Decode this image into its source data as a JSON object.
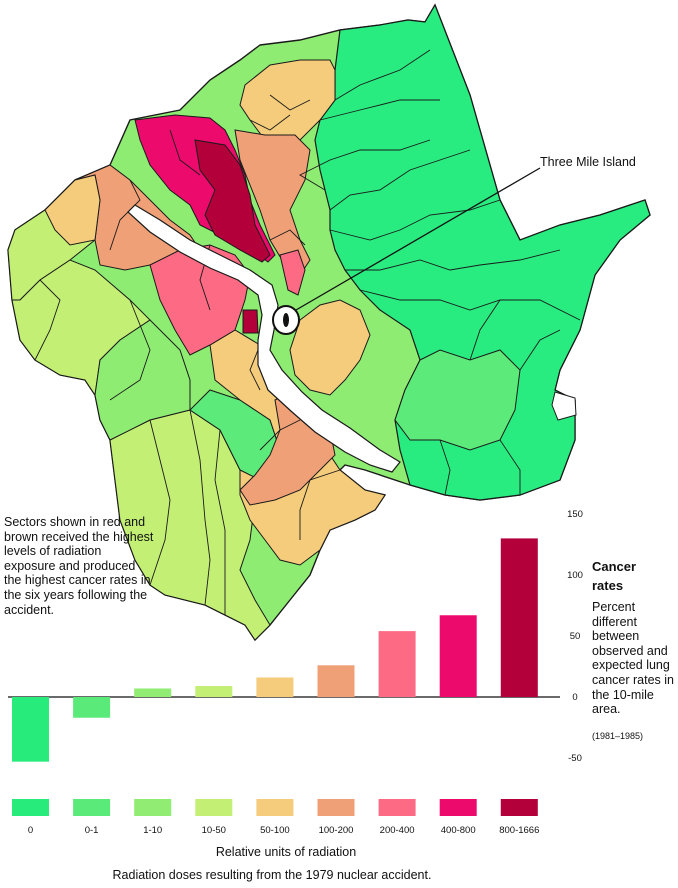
{
  "map": {
    "island_label": "Three Mile Island",
    "note": "Sectors shown in red and brown received the highest levels of radiation exposure and produced the highest cancer rates in the six years following the accident."
  },
  "legend": {
    "title_line1": "Cancer",
    "title_line2": "rates",
    "description": "Percent different between observed and expected lung cancer rates in the 10-mile area.",
    "period": "(1981–1985)"
  },
  "colors": {
    "0": "#27ec7c",
    "0-1": "#5aea7a",
    "1-10": "#90ec72",
    "10-50": "#c3ef75",
    "50-100": "#f4cc7b",
    "100-200": "#f0a077",
    "200-400": "#fd6a83",
    "400-800": "#ec0a6c",
    "800-1666": "#b3003a"
  },
  "chart_data": {
    "type": "bar",
    "categories": [
      "0",
      "0-1",
      "1-10",
      "10-50",
      "50-100",
      "100-200",
      "200-400",
      "400-800",
      "800-1666"
    ],
    "values": [
      -53,
      -17,
      7,
      9,
      16,
      26,
      54,
      67,
      130
    ],
    "ylim": [
      -60,
      150
    ],
    "yticks": [
      150,
      100,
      50,
      0,
      -50
    ],
    "ytick_labels": [
      "150",
      "100",
      "50",
      "0",
      "-50"
    ],
    "xlabel": "Relative units of radiation",
    "caption": "Radiation doses resulting from the 1979 nuclear accident."
  }
}
